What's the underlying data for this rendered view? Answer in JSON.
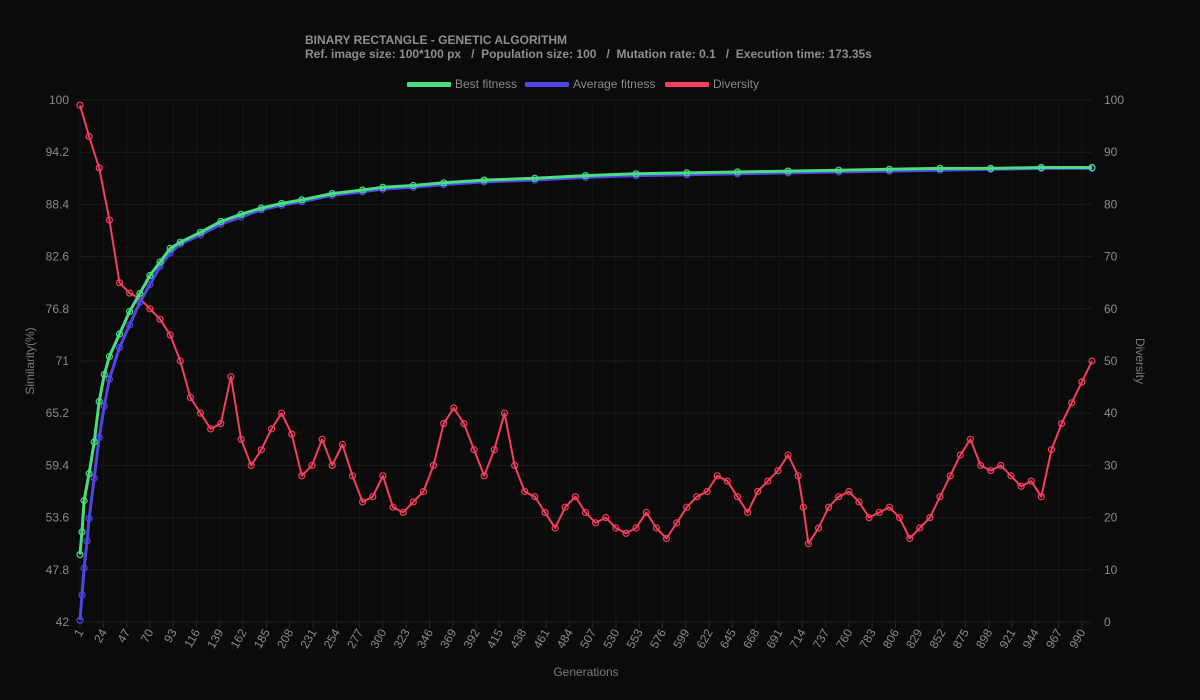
{
  "chart_data": {
    "type": "line",
    "title": "BINARY RECTANGLE - GENETIC ALGORITHM",
    "subtitle": "Ref. image size: 100*100 px   /  Population size: 100   /  Mutation rate: 0.1   /  Execution time: 173.35s",
    "xlabel": "Generations",
    "ylabel_left": "Similarity(%)",
    "ylabel_right": "Diversity",
    "xlim": [
      1,
      1000
    ],
    "ylim_left": [
      42,
      100
    ],
    "ylim_right": [
      0,
      100
    ],
    "x_ticks": [
      "1",
      "24",
      "47",
      "70",
      "93",
      "116",
      "139",
      "162",
      "185",
      "208",
      "231",
      "254",
      "277",
      "300",
      "323",
      "346",
      "369",
      "392",
      "415",
      "438",
      "461",
      "484",
      "507",
      "530",
      "553",
      "576",
      "599",
      "622",
      "645",
      "668",
      "691",
      "714",
      "737",
      "760",
      "783",
      "806",
      "829",
      "852",
      "875",
      "898",
      "921",
      "944",
      "967",
      "990"
    ],
    "y_left_ticks": [
      "100",
      "94.2",
      "88.4",
      "82.6",
      "76.8",
      "71",
      "65.2",
      "59.4",
      "53.6",
      "47.8",
      "42"
    ],
    "y_right_ticks": [
      "100",
      "90",
      "80",
      "70",
      "60",
      "50",
      "40",
      "30",
      "20",
      "10",
      "0"
    ],
    "grid": true,
    "legend_position": "top-center",
    "series": [
      {
        "name": "Best fitness",
        "axis": "left",
        "color": "#4ade80",
        "points": [
          [
            1,
            49.5
          ],
          [
            3,
            52
          ],
          [
            5,
            55.5
          ],
          [
            10,
            58.5
          ],
          [
            15,
            62
          ],
          [
            20,
            66.5
          ],
          [
            25,
            69.5
          ],
          [
            30,
            71.5
          ],
          [
            40,
            74
          ],
          [
            50,
            76.5
          ],
          [
            60,
            78.5
          ],
          [
            70,
            80.5
          ],
          [
            80,
            82
          ],
          [
            90,
            83.5
          ],
          [
            100,
            84.2
          ],
          [
            120,
            85.3
          ],
          [
            140,
            86.5
          ],
          [
            160,
            87.3
          ],
          [
            180,
            88
          ],
          [
            200,
            88.5
          ],
          [
            220,
            88.9
          ],
          [
            250,
            89.6
          ],
          [
            280,
            90
          ],
          [
            300,
            90.3
          ],
          [
            330,
            90.5
          ],
          [
            360,
            90.8
          ],
          [
            400,
            91.1
          ],
          [
            450,
            91.3
          ],
          [
            500,
            91.6
          ],
          [
            550,
            91.8
          ],
          [
            600,
            91.9
          ],
          [
            650,
            92
          ],
          [
            700,
            92.1
          ],
          [
            750,
            92.2
          ],
          [
            800,
            92.3
          ],
          [
            850,
            92.4
          ],
          [
            900,
            92.4
          ],
          [
            950,
            92.5
          ],
          [
            1000,
            92.5
          ]
        ]
      },
      {
        "name": "Average fitness",
        "axis": "left",
        "color": "#4f46e5",
        "points": [
          [
            1,
            42.2
          ],
          [
            3,
            45
          ],
          [
            5,
            48
          ],
          [
            8,
            51
          ],
          [
            10,
            53.5
          ],
          [
            15,
            58
          ],
          [
            20,
            62.5
          ],
          [
            25,
            66
          ],
          [
            30,
            69
          ],
          [
            40,
            72.5
          ],
          [
            50,
            75
          ],
          [
            60,
            77.5
          ],
          [
            70,
            79.5
          ],
          [
            80,
            81.5
          ],
          [
            90,
            83
          ],
          [
            100,
            84
          ],
          [
            120,
            85
          ],
          [
            140,
            86.2
          ],
          [
            160,
            87
          ],
          [
            180,
            87.8
          ],
          [
            200,
            88.3
          ],
          [
            220,
            88.7
          ],
          [
            250,
            89.4
          ],
          [
            280,
            89.8
          ],
          [
            300,
            90.1
          ],
          [
            330,
            90.3
          ],
          [
            360,
            90.6
          ],
          [
            400,
            90.9
          ],
          [
            450,
            91.1
          ],
          [
            500,
            91.4
          ],
          [
            550,
            91.6
          ],
          [
            600,
            91.7
          ],
          [
            650,
            91.8
          ],
          [
            700,
            91.9
          ],
          [
            750,
            92
          ],
          [
            800,
            92.1
          ],
          [
            850,
            92.2
          ],
          [
            900,
            92.3
          ],
          [
            950,
            92.4
          ],
          [
            1000,
            92.4
          ]
        ]
      },
      {
        "name": "Diversity",
        "axis": "right",
        "color": "#f43f5e",
        "points": [
          [
            1,
            99
          ],
          [
            10,
            93
          ],
          [
            20,
            87
          ],
          [
            30,
            77
          ],
          [
            40,
            65
          ],
          [
            50,
            63
          ],
          [
            60,
            62
          ],
          [
            70,
            60
          ],
          [
            80,
            58
          ],
          [
            90,
            55
          ],
          [
            100,
            50
          ],
          [
            110,
            43
          ],
          [
            120,
            40
          ],
          [
            130,
            37
          ],
          [
            140,
            38
          ],
          [
            150,
            47
          ],
          [
            160,
            35
          ],
          [
            170,
            30
          ],
          [
            180,
            33
          ],
          [
            190,
            37
          ],
          [
            200,
            40
          ],
          [
            210,
            36
          ],
          [
            220,
            28
          ],
          [
            230,
            30
          ],
          [
            240,
            35
          ],
          [
            250,
            30
          ],
          [
            260,
            34
          ],
          [
            270,
            28
          ],
          [
            280,
            23
          ],
          [
            290,
            24
          ],
          [
            300,
            28
          ],
          [
            310,
            22
          ],
          [
            320,
            21
          ],
          [
            330,
            23
          ],
          [
            340,
            25
          ],
          [
            350,
            30
          ],
          [
            360,
            38
          ],
          [
            370,
            41
          ],
          [
            380,
            38
          ],
          [
            390,
            33
          ],
          [
            400,
            28
          ],
          [
            410,
            33
          ],
          [
            420,
            40
          ],
          [
            430,
            30
          ],
          [
            440,
            25
          ],
          [
            450,
            24
          ],
          [
            460,
            21
          ],
          [
            470,
            18
          ],
          [
            480,
            22
          ],
          [
            490,
            24
          ],
          [
            500,
            21
          ],
          [
            510,
            19
          ],
          [
            520,
            20
          ],
          [
            530,
            18
          ],
          [
            540,
            17
          ],
          [
            550,
            18
          ],
          [
            560,
            21
          ],
          [
            570,
            18
          ],
          [
            580,
            16
          ],
          [
            590,
            19
          ],
          [
            600,
            22
          ],
          [
            610,
            24
          ],
          [
            620,
            25
          ],
          [
            630,
            28
          ],
          [
            640,
            27
          ],
          [
            650,
            24
          ],
          [
            660,
            21
          ],
          [
            670,
            25
          ],
          [
            680,
            27
          ],
          [
            690,
            29
          ],
          [
            700,
            32
          ],
          [
            710,
            28
          ],
          [
            715,
            22
          ],
          [
            720,
            15
          ],
          [
            730,
            18
          ],
          [
            740,
            22
          ],
          [
            750,
            24
          ],
          [
            760,
            25
          ],
          [
            770,
            23
          ],
          [
            780,
            20
          ],
          [
            790,
            21
          ],
          [
            800,
            22
          ],
          [
            810,
            20
          ],
          [
            820,
            16
          ],
          [
            830,
            18
          ],
          [
            840,
            20
          ],
          [
            850,
            24
          ],
          [
            860,
            28
          ],
          [
            870,
            32
          ],
          [
            880,
            35
          ],
          [
            890,
            30
          ],
          [
            900,
            29
          ],
          [
            910,
            30
          ],
          [
            920,
            28
          ],
          [
            930,
            26
          ],
          [
            940,
            27
          ],
          [
            950,
            24
          ],
          [
            960,
            33
          ],
          [
            970,
            38
          ],
          [
            980,
            42
          ],
          [
            990,
            46
          ],
          [
            1000,
            50
          ]
        ]
      }
    ]
  }
}
